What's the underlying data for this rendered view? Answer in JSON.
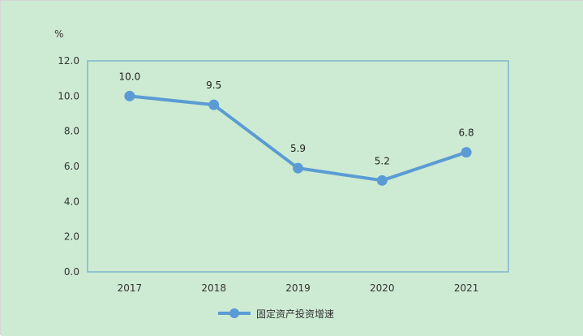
{
  "chart_data": {
    "type": "line",
    "categories": [
      "2017",
      "2018",
      "2019",
      "2020",
      "2021"
    ],
    "series": [
      {
        "name": "固定资产投资增速",
        "values": [
          10.0,
          9.5,
          5.9,
          5.2,
          6.8
        ],
        "labels": [
          "10.0",
          "9.5",
          "5.9",
          "5.2",
          "6.8"
        ]
      }
    ],
    "title": "",
    "xlabel": "",
    "ylabel": "",
    "y_unit": "%",
    "ylim": [
      0,
      12
    ],
    "y_ticks": [
      "0.0",
      "2.0",
      "4.0",
      "6.0",
      "8.0",
      "10.0",
      "12.0"
    ],
    "grid": false,
    "legend_position": "bottom",
    "colors": {
      "background": "#cdebd2",
      "plot_border": "#7fb5cf",
      "axis": "#7fb5cf",
      "series": "#5b9bd5"
    }
  }
}
